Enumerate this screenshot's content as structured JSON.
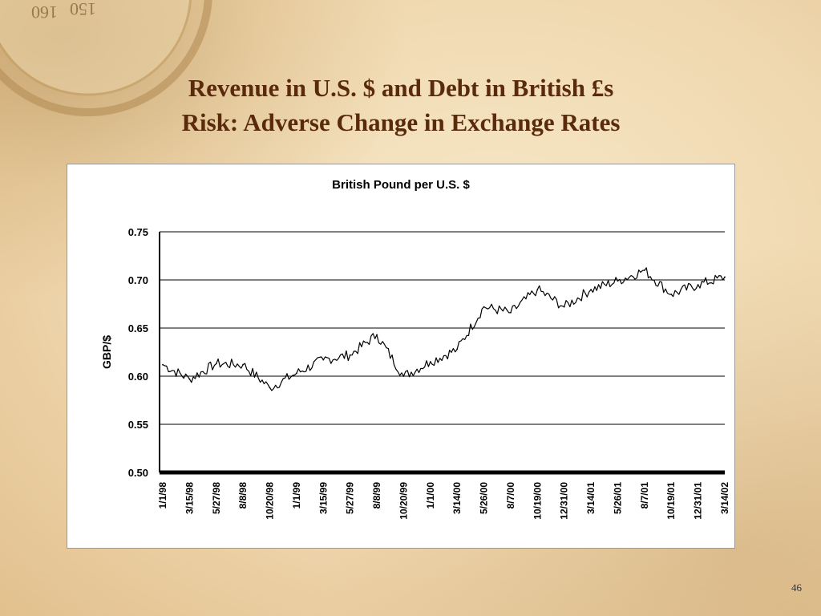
{
  "slide": {
    "title_line1": "Revenue in U.S. $ and Debt in British £s",
    "title_line2": "Risk: Adverse Change in Exchange Rates",
    "page_number": "46"
  },
  "chart_data": {
    "type": "line",
    "title": "British Pound per U.S. $",
    "xlabel": "",
    "ylabel": "GBP/$",
    "ylim": [
      0.5,
      0.75
    ],
    "yticks": [
      "0.75",
      "0.70",
      "0.65",
      "0.60",
      "0.55",
      "0.50"
    ],
    "xticks": [
      "1/1/98",
      "3/15/98",
      "5/27/98",
      "8/8/98",
      "10/20/98",
      "1/1/99",
      "3/15/99",
      "5/27/99",
      "8/8/99",
      "10/20/99",
      "1/1/00",
      "3/14/00",
      "5/26/00",
      "8/7/00",
      "10/19/00",
      "12/31/00",
      "3/14/01",
      "5/26/01",
      "8/7/01",
      "10/19/01",
      "12/31/01",
      "3/14/02"
    ],
    "grid": true,
    "series": [
      {
        "color": "#000000",
        "x": [
          "1/1/98",
          "3/15/98",
          "5/27/98",
          "8/8/98",
          "10/20/98",
          "1/1/99",
          "3/15/99",
          "5/27/99",
          "8/8/99",
          "10/20/99",
          "1/1/00",
          "3/14/00",
          "5/26/00",
          "8/7/00",
          "10/19/00",
          "12/31/00",
          "3/14/01",
          "5/26/01",
          "8/7/01",
          "10/19/01",
          "12/31/01",
          "3/14/02"
        ],
        "values": [
          0.612,
          0.597,
          0.613,
          0.612,
          0.588,
          0.603,
          0.617,
          0.622,
          0.643,
          0.6,
          0.615,
          0.628,
          0.672,
          0.666,
          0.69,
          0.672,
          0.69,
          0.699,
          0.71,
          0.685,
          0.695,
          0.703
        ]
      }
    ]
  }
}
